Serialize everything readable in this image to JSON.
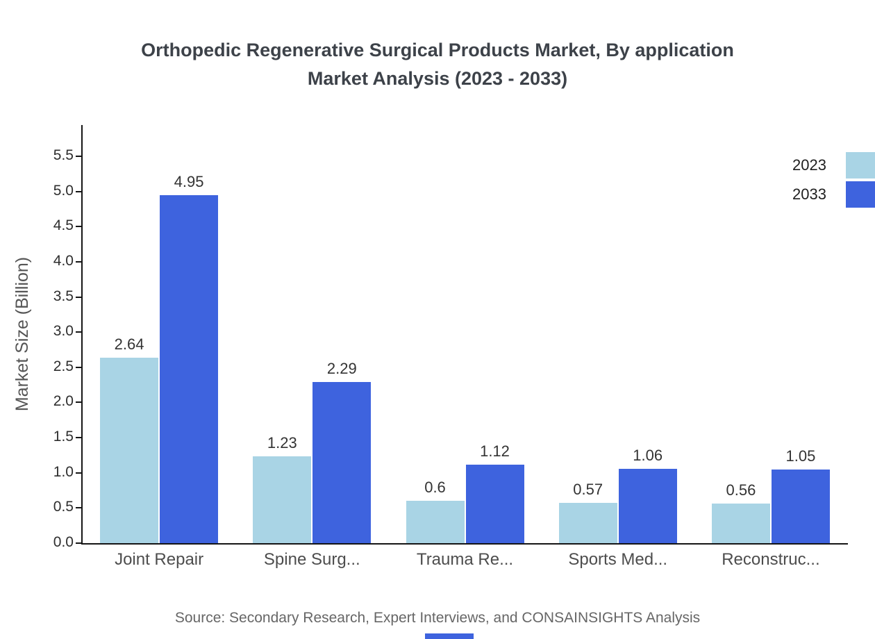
{
  "title": {
    "line1": "Orthopedic Regenerative Surgical Products Market, By application",
    "line2": "Market Analysis (2023 - 2033)"
  },
  "source": "Source: Secondary Research, Expert Interviews, and CONSAINSIGHTS Analysis",
  "legend": {
    "items": [
      {
        "label": "2023",
        "color": "#A9D4E5"
      },
      {
        "label": "2033",
        "color": "#3E63DE"
      }
    ]
  },
  "chart_data": {
    "type": "bar",
    "title": "Orthopedic Regenerative Surgical Products Market, By application Market Analysis (2023 - 2033)",
    "xlabel": "",
    "ylabel": "Market Size (Billion)",
    "categories": [
      "Joint Repair",
      "Spine Surg...",
      "Trauma Re...",
      "Sports Med...",
      "Reconstruc..."
    ],
    "series": [
      {
        "name": "2023",
        "color": "#A9D4E5",
        "values": [
          2.64,
          1.23,
          0.6,
          0.57,
          0.56
        ]
      },
      {
        "name": "2033",
        "color": "#3E63DE",
        "values": [
          4.95,
          2.29,
          1.12,
          1.06,
          1.05
        ]
      }
    ],
    "ylim": [
      0,
      5.9
    ],
    "yticks": [
      0.0,
      0.5,
      1.0,
      1.5,
      2.0,
      2.5,
      3.0,
      3.5,
      4.0,
      4.5,
      5.0,
      5.5
    ],
    "grid": false,
    "legend_position": "top-right"
  }
}
